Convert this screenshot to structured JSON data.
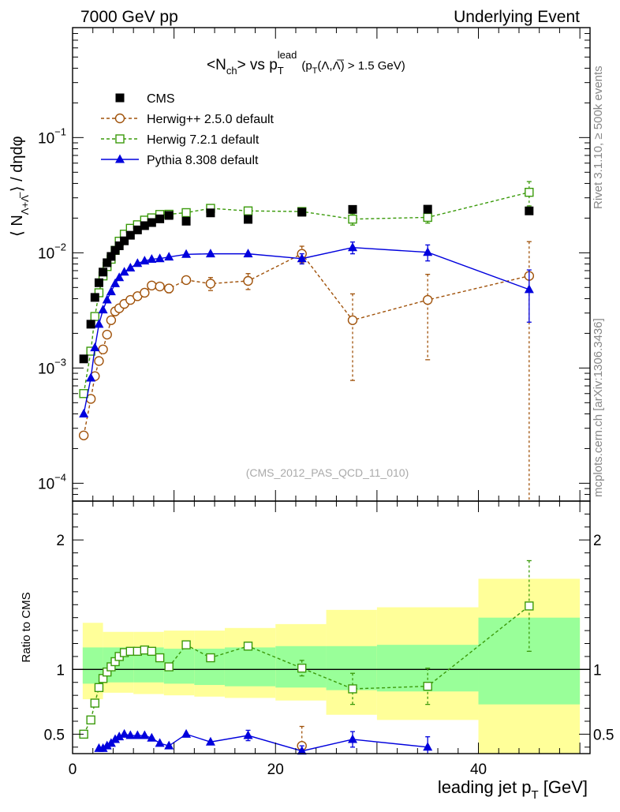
{
  "header": {
    "left": "7000 GeV pp",
    "right": "Underlying Event"
  },
  "side_labels": {
    "rivet": "Rivet 3.1.10, ≥ 500k events",
    "mcplots": "mcplots.cern.ch [arXiv:1306.3436]"
  },
  "watermark": "(CMS_2012_PAS_QCD_11_010)",
  "colors": {
    "cms": "#000000",
    "herwigpp": "#a0520a",
    "herwig7": "#3a9a0a",
    "pythia": "#0000dd",
    "band_inner": "#99ff99",
    "band_outer": "#ffff99"
  },
  "chart_data": [
    {
      "type": "scatter",
      "scale": "log",
      "title": "<N_ch> vs p_T^lead (p_T(Λ,Λ̅) > 1.5 GeV)",
      "title_parts": {
        "main": "<N",
        "sub": "ch",
        "vs": "> vs p",
        "subT": "T",
        "sup": "lead",
        "cut": "(p",
        "cutsub": "T",
        "cutrest": "(Λ,Λ̅) > 1.5 GeV)"
      },
      "ylabel": "⟨ N_{Λ+Λ̅} ⟩ / dηdφ",
      "ylabel_parts": {
        "open": "⟨ N",
        "sub": "Λ+Λ̅",
        "close": "⟩ / dηdφ"
      },
      "xlim": [
        0,
        51
      ],
      "ylim": [
        7e-05,
        0.9
      ],
      "ytick_labels": [
        {
          "base": "10",
          "exp": "−4",
          "value": 0.0001
        },
        {
          "base": "10",
          "exp": "−3",
          "value": 0.001
        },
        {
          "base": "10",
          "exp": "−2",
          "value": 0.01
        },
        {
          "base": "10",
          "exp": "−1",
          "value": 0.1
        }
      ],
      "legend": [
        {
          "name": "CMS",
          "key": "cms"
        },
        {
          "name": "Herwig++ 2.5.0 default",
          "key": "herwigpp"
        },
        {
          "name": "Herwig 7.2.1 default",
          "key": "herwig7"
        },
        {
          "name": "Pythia 8.308 default",
          "key": "pythia"
        }
      ],
      "series": [
        {
          "name": "CMS",
          "key": "cms",
          "marker": "square-filled",
          "line": "none",
          "x": [
            1.1,
            1.8,
            2.2,
            2.6,
            3.0,
            3.4,
            3.8,
            4.2,
            4.6,
            5.1,
            5.7,
            6.4,
            7.1,
            7.8,
            8.6,
            9.5,
            11.2,
            13.6,
            17.3,
            22.6,
            27.6,
            35.0,
            45.0
          ],
          "y": [
            0.0012,
            0.0024,
            0.0041,
            0.0055,
            0.0068,
            0.0082,
            0.0093,
            0.0105,
            0.0115,
            0.0127,
            0.0142,
            0.0158,
            0.0172,
            0.0183,
            0.0197,
            0.0211,
            0.0188,
            0.0222,
            0.0195,
            0.0225,
            0.0238,
            0.0239,
            0.0231
          ]
        },
        {
          "name": "Herwig++ 2.5.0 default",
          "key": "herwigpp",
          "marker": "circle-open",
          "line": "dashed",
          "x": [
            1.1,
            1.8,
            2.2,
            2.6,
            3.0,
            3.4,
            3.8,
            4.2,
            4.6,
            5.1,
            5.7,
            6.4,
            7.1,
            7.8,
            8.6,
            9.5,
            11.2,
            13.6,
            17.3,
            22.6,
            27.6,
            35.0,
            45.0
          ],
          "y": [
            0.00026,
            0.00054,
            0.00085,
            0.00115,
            0.00145,
            0.00195,
            0.0026,
            0.0031,
            0.0033,
            0.0036,
            0.0039,
            0.0042,
            0.0045,
            0.0052,
            0.0051,
            0.0049,
            0.0058,
            0.0054,
            0.0057,
            0.0098,
            0.0026,
            0.0039,
            0.0063
          ],
          "yerr_low": [
            0,
            0,
            0,
            0,
            0,
            0,
            0,
            0,
            0,
            0,
            0,
            0,
            0,
            0,
            0,
            0.0004,
            0.0004,
            0.0007,
            0.0009,
            0.0016,
            0.00182,
            0.00272,
            0.0063
          ],
          "yerr_high": [
            0,
            0,
            0,
            0,
            0,
            0,
            0,
            0,
            0,
            0,
            0,
            0,
            0,
            0,
            0,
            0.0004,
            0.0004,
            0.0007,
            0.0009,
            0.0016,
            0.0018,
            0.0026,
            0.0062
          ]
        },
        {
          "name": "Herwig 7.2.1 default",
          "key": "herwig7",
          "marker": "square-open",
          "line": "dashed",
          "x": [
            1.1,
            1.8,
            2.2,
            2.6,
            3.0,
            3.4,
            3.8,
            4.2,
            4.6,
            5.1,
            5.7,
            6.4,
            7.1,
            7.8,
            8.6,
            9.5,
            11.2,
            13.6,
            17.3,
            22.6,
            27.6,
            35.0,
            45.0
          ],
          "y": [
            0.0006,
            0.0014,
            0.0028,
            0.0045,
            0.0063,
            0.0076,
            0.0088,
            0.0105,
            0.0126,
            0.0145,
            0.0163,
            0.0175,
            0.0192,
            0.0201,
            0.0215,
            0.0216,
            0.0223,
            0.0243,
            0.0231,
            0.0228,
            0.0196,
            0.0203,
            0.0335
          ],
          "yerr_low": [
            0,
            0,
            0,
            0,
            0,
            0,
            0,
            0,
            0,
            0,
            0,
            0,
            0,
            0,
            0,
            0,
            0,
            0,
            0,
            0,
            0.0022,
            0.0022,
            0.008
          ],
          "yerr_high": [
            0,
            0,
            0,
            0,
            0,
            0,
            0,
            0,
            0,
            0,
            0,
            0,
            0,
            0,
            0,
            0,
            0,
            0,
            0,
            0,
            0.0022,
            0.0022,
            0.008
          ]
        },
        {
          "name": "Pythia 8.308 default",
          "key": "pythia",
          "marker": "triangle-filled",
          "line": "solid",
          "x": [
            1.1,
            1.8,
            2.2,
            2.6,
            3.0,
            3.4,
            3.8,
            4.2,
            4.6,
            5.1,
            5.7,
            6.4,
            7.1,
            7.8,
            8.6,
            9.5,
            11.2,
            13.6,
            17.3,
            22.6,
            27.6,
            35.0,
            45.0
          ],
          "y": [
            0.0004,
            0.00082,
            0.0015,
            0.0024,
            0.0032,
            0.0039,
            0.0046,
            0.0054,
            0.0061,
            0.0068,
            0.0074,
            0.0081,
            0.0085,
            0.0088,
            0.0089,
            0.0092,
            0.0097,
            0.0098,
            0.0098,
            0.0089,
            0.0111,
            0.0101,
            0.0048
          ],
          "yerr_low": [
            0,
            0,
            0,
            0,
            0,
            0,
            0,
            0,
            0,
            0,
            0,
            0,
            0,
            0,
            0,
            0,
            0,
            0,
            0,
            0.0009,
            0.0013,
            0.0016,
            0.0023
          ],
          "yerr_high": [
            0,
            0,
            0,
            0,
            0,
            0,
            0,
            0,
            0,
            0,
            0,
            0,
            0,
            0,
            0,
            0,
            0,
            0,
            0,
            0.0009,
            0.0013,
            0.0016,
            0.0023
          ]
        }
      ]
    },
    {
      "type": "scatter",
      "scale": "linear",
      "ylabel": "Ratio to CMS",
      "xlabel": "leading jet p_T [GeV]",
      "xlabel_parts": {
        "main": "leading jet p",
        "sub": "T",
        "rest": " [GeV]"
      },
      "xlim": [
        0,
        51
      ],
      "ylim": [
        0.35,
        2.3
      ],
      "xtick_labels": [
        "0",
        "20",
        "40"
      ],
      "xtick_values": [
        0,
        20,
        40
      ],
      "ytick_labels": [
        "0.5",
        "1",
        "2"
      ],
      "ytick_values": [
        0.5,
        1,
        2
      ],
      "cms_band_bins": {
        "edges": [
          1.0,
          3.0,
          6.0,
          9.0,
          12.0,
          15.0,
          20.0,
          25.0,
          30.0,
          40.0,
          50.0
        ],
        "inner_low": [
          0.89,
          0.9,
          0.9,
          0.89,
          0.88,
          0.87,
          0.86,
          0.84,
          0.83,
          0.73
        ],
        "inner_high": [
          1.17,
          1.17,
          1.17,
          1.16,
          1.16,
          1.17,
          1.18,
          1.18,
          1.19,
          1.4
        ],
        "outer_low": [
          0.77,
          0.82,
          0.81,
          0.8,
          0.79,
          0.78,
          0.76,
          0.65,
          0.61,
          0.33
        ],
        "outer_high": [
          1.36,
          1.29,
          1.29,
          1.3,
          1.3,
          1.32,
          1.35,
          1.46,
          1.48,
          1.7
        ]
      },
      "series": [
        {
          "name": "Herwig++ 2.5.0 default",
          "key": "herwigpp",
          "marker": "circle-open",
          "line": "dashed",
          "x": [
            22.6
          ],
          "y": [
            0.41
          ],
          "yerr_low": [
            0.07
          ],
          "yerr_high": [
            0.15
          ]
        },
        {
          "name": "Herwig 7.2.1 default",
          "key": "herwig7",
          "marker": "square-open",
          "line": "dashed",
          "x": [
            1.1,
            1.8,
            2.2,
            2.6,
            3.0,
            3.4,
            3.8,
            4.2,
            4.6,
            5.1,
            5.7,
            6.4,
            7.1,
            7.8,
            8.6,
            9.5,
            11.2,
            13.6,
            17.3,
            22.6,
            27.6,
            35.0,
            45.0
          ],
          "y": [
            0.5,
            0.61,
            0.74,
            0.86,
            0.93,
            0.98,
            1.02,
            1.06,
            1.1,
            1.13,
            1.14,
            1.14,
            1.15,
            1.14,
            1.09,
            1.02,
            1.19,
            1.09,
            1.18,
            1.01,
            0.85,
            0.87,
            1.49
          ],
          "yerr_low": [
            0,
            0,
            0,
            0,
            0,
            0,
            0,
            0,
            0,
            0,
            0,
            0,
            0,
            0,
            0,
            0,
            0,
            0,
            0.03,
            0.06,
            0.12,
            0.14,
            0.35
          ],
          "yerr_high": [
            0,
            0,
            0,
            0,
            0,
            0,
            0,
            0,
            0,
            0,
            0,
            0,
            0,
            0,
            0,
            0,
            0,
            0,
            0.03,
            0.06,
            0.12,
            0.14,
            0.35
          ]
        },
        {
          "name": "Pythia 8.308 default",
          "key": "pythia",
          "marker": "triangle-filled",
          "line": "solid",
          "x": [
            2.6,
            3.0,
            3.4,
            3.8,
            4.2,
            4.6,
            5.1,
            5.7,
            6.4,
            7.1,
            7.8,
            8.6,
            9.5,
            11.2,
            13.6,
            17.3,
            22.6,
            27.6,
            35.0
          ],
          "y": [
            0.39,
            0.39,
            0.41,
            0.43,
            0.46,
            0.48,
            0.5,
            0.49,
            0.49,
            0.49,
            0.47,
            0.43,
            0.41,
            0.5,
            0.44,
            0.49,
            0.37,
            0.46,
            0.4
          ],
          "yerr_low": [
            0,
            0,
            0,
            0,
            0,
            0,
            0,
            0,
            0,
            0,
            0,
            0,
            0,
            0,
            0,
            0.04,
            0.04,
            0.06,
            0.08
          ],
          "yerr_high": [
            0,
            0,
            0,
            0,
            0,
            0,
            0,
            0,
            0,
            0,
            0,
            0,
            0,
            0,
            0,
            0.04,
            0.04,
            0.06,
            0.08
          ]
        }
      ]
    }
  ]
}
